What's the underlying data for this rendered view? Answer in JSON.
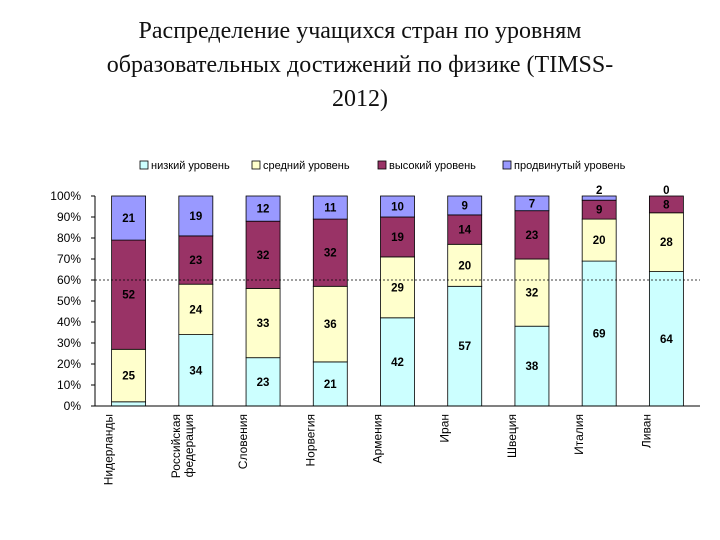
{
  "title_lines": [
    "Распределение учащихся стран по уровням",
    "образовательных достижений по физике (TIMSS-",
    "2012)"
  ],
  "chart_data": {
    "type": "bar",
    "stacked": true,
    "percent": true,
    "categories": [
      [
        "Нидерланды"
      ],
      [
        "Российская",
        "федерация"
      ],
      [
        "Словения"
      ],
      [
        "Норвегия"
      ],
      [
        "Армения"
      ],
      [
        "Иран"
      ],
      [
        "Швеция"
      ],
      [
        "Италия"
      ],
      [
        "Ливан"
      ]
    ],
    "series": [
      {
        "name": "низкий уровень",
        "color": "#ccffff",
        "values": [
          2,
          34,
          23,
          21,
          42,
          57,
          38,
          69,
          64
        ]
      },
      {
        "name": "средний уровень",
        "color": "#ffffcc",
        "values": [
          25,
          24,
          33,
          36,
          29,
          20,
          32,
          20,
          28
        ]
      },
      {
        "name": "высокий уровень",
        "color": "#993366",
        "values": [
          52,
          23,
          32,
          32,
          19,
          14,
          23,
          9,
          8
        ]
      },
      {
        "name": "продвинутый уровень",
        "color": "#9999ff",
        "values": [
          21,
          19,
          12,
          11,
          10,
          9,
          7,
          2,
          0
        ]
      }
    ],
    "y_ticks": [
      "0%",
      "10%",
      "20%",
      "30%",
      "40%",
      "50%",
      "60%",
      "70%",
      "80%",
      "90%",
      "100%"
    ],
    "ylim": [
      0,
      100
    ],
    "reference_line": 60,
    "legend_position": "top"
  }
}
